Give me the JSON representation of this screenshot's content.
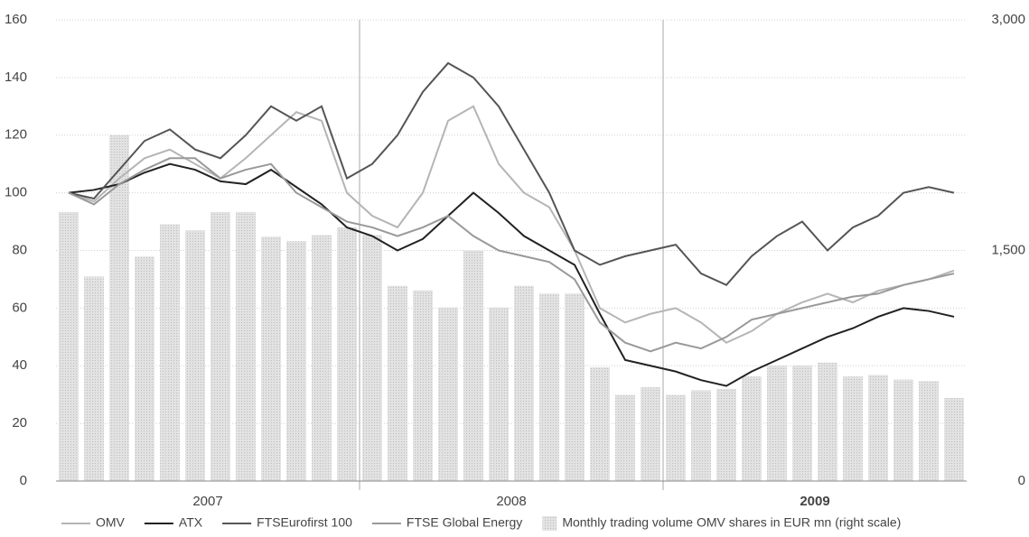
{
  "chart_data": {
    "type": "line",
    "categories": [
      null,
      null,
      null,
      null,
      null,
      null,
      null,
      null,
      null,
      null,
      null,
      null,
      null,
      null,
      null,
      null,
      null,
      null,
      null,
      null,
      null,
      null,
      null,
      null,
      null,
      null,
      null,
      null,
      null,
      null,
      null,
      null,
      null,
      null,
      null,
      null
    ],
    "year_labels": [
      "2007",
      "2008",
      "2009"
    ],
    "ylim": [
      0,
      160
    ],
    "yticks": [
      0,
      20,
      40,
      60,
      80,
      100,
      120,
      140,
      160
    ],
    "y2lim": [
      0,
      3000
    ],
    "y2ticks": [
      0,
      {
        "value": 1500,
        "label": "1,500"
      },
      {
        "value": 3000,
        "label": "3,000"
      }
    ],
    "grid": true,
    "legend": "bottom",
    "series": [
      {
        "name": "Monthly trading volume OMV shares in EUR mn (right scale)",
        "type": "bar",
        "axis": "y2",
        "color": "#d4d4d4",
        "values": [
          1750,
          1330,
          2250,
          1460,
          1670,
          1630,
          1750,
          1750,
          1590,
          1560,
          1600,
          1650,
          1600,
          1270,
          1240,
          1130,
          1500,
          1130,
          1270,
          1220,
          1220,
          740,
          560,
          610,
          560,
          590,
          600,
          680,
          750,
          750,
          770,
          680,
          690,
          660,
          650,
          540
        ]
      },
      {
        "name": "OMV",
        "color": "#b5b5b5",
        "values": [
          100,
          97,
          105,
          112,
          115,
          110,
          105,
          112,
          120,
          128,
          125,
          100,
          92,
          88,
          100,
          125,
          130,
          110,
          100,
          95,
          80,
          60,
          55,
          58,
          60,
          55,
          48,
          52,
          58,
          62,
          65,
          62,
          66,
          68,
          70,
          73
        ]
      },
      {
        "name": "ATX",
        "color": "#222222",
        "values": [
          100,
          101,
          103,
          107,
          110,
          108,
          104,
          103,
          108,
          102,
          96,
          88,
          85,
          80,
          84,
          92,
          100,
          93,
          85,
          80,
          75,
          58,
          42,
          40,
          38,
          35,
          33,
          38,
          42,
          46,
          50,
          53,
          57,
          60,
          59,
          57
        ]
      },
      {
        "name": "FTSEurofirst 100",
        "color": "#555555",
        "values": [
          100,
          98,
          108,
          118,
          122,
          115,
          112,
          120,
          130,
          125,
          130,
          105,
          110,
          120,
          135,
          145,
          140,
          130,
          115,
          100,
          80,
          75,
          78,
          80,
          82,
          72,
          68,
          78,
          85,
          90,
          80,
          88,
          92,
          100,
          102,
          100
        ]
      },
      {
        "name": "FTSE Global Energy",
        "color": "#999999",
        "values": [
          100,
          96,
          103,
          108,
          112,
          112,
          105,
          108,
          110,
          100,
          95,
          90,
          88,
          85,
          88,
          92,
          85,
          80,
          78,
          76,
          70,
          55,
          48,
          45,
          48,
          46,
          50,
          56,
          58,
          60,
          62,
          64,
          65,
          68,
          70,
          72
        ]
      }
    ]
  }
}
